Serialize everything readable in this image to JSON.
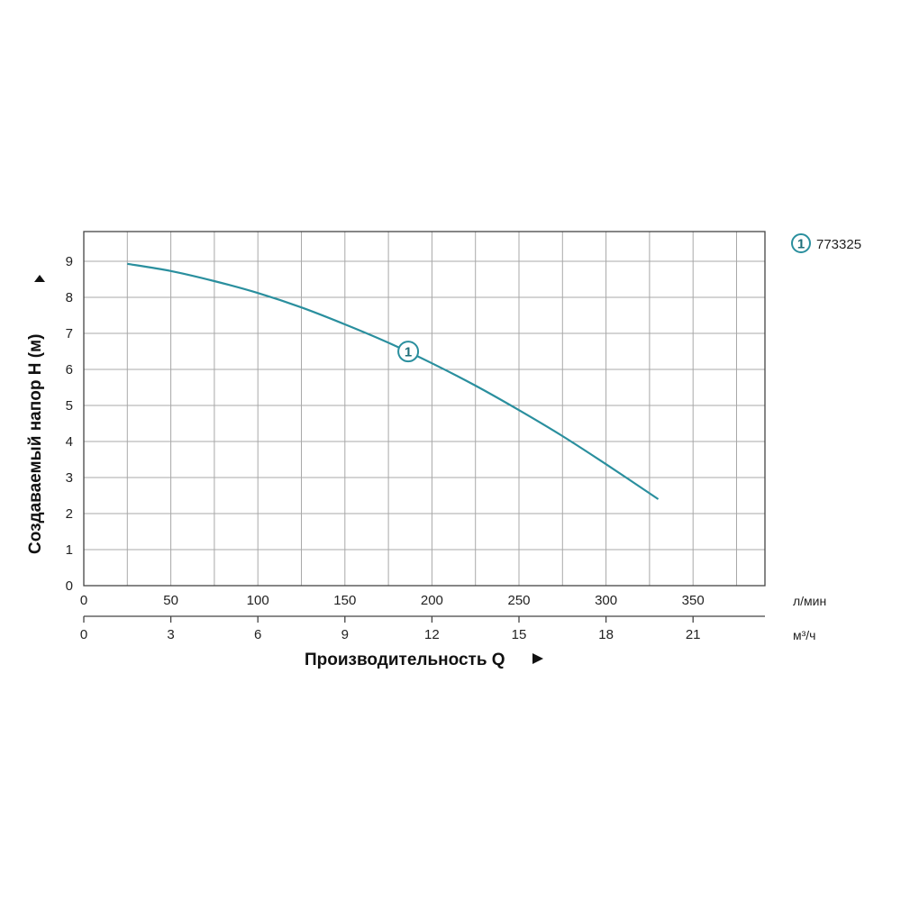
{
  "chart_data": {
    "type": "line",
    "ylabel": "Создаваемый напор H (м)",
    "xlabel": "Производительность Q",
    "ylim": [
      0,
      9
    ],
    "y_ticks": [
      "0",
      "1",
      "2",
      "3",
      "4",
      "5",
      "6",
      "7",
      "8",
      "9"
    ],
    "x_primary": {
      "unit": "л/мин",
      "ticks": [
        "0",
        "50",
        "100",
        "150",
        "200",
        "250",
        "300",
        "350"
      ],
      "values": [
        0,
        50,
        100,
        150,
        200,
        250,
        300,
        350
      ]
    },
    "x_secondary": {
      "unit": "м³/ч",
      "ticks": [
        "0",
        "3",
        "6",
        "9",
        "12",
        "15",
        "18",
        "21"
      ],
      "values": [
        0,
        3,
        6,
        9,
        12,
        15,
        18,
        21
      ]
    },
    "grid": true,
    "series": [
      {
        "name": "773325",
        "marker_label": "1",
        "color": "#2a8f9e",
        "x_unit": "л/мин",
        "points": [
          [
            25,
            8.93
          ],
          [
            50,
            8.73
          ],
          [
            75,
            8.45
          ],
          [
            100,
            8.12
          ],
          [
            125,
            7.72
          ],
          [
            150,
            7.25
          ],
          [
            175,
            6.74
          ],
          [
            200,
            6.17
          ],
          [
            225,
            5.55
          ],
          [
            250,
            4.87
          ],
          [
            275,
            4.15
          ],
          [
            300,
            3.37
          ],
          [
            330,
            2.4
          ]
        ],
        "marker_at_x": 190
      }
    ],
    "legend": {
      "position": "top-right",
      "items": [
        {
          "marker_label": "1",
          "text": "773325"
        }
      ]
    }
  }
}
